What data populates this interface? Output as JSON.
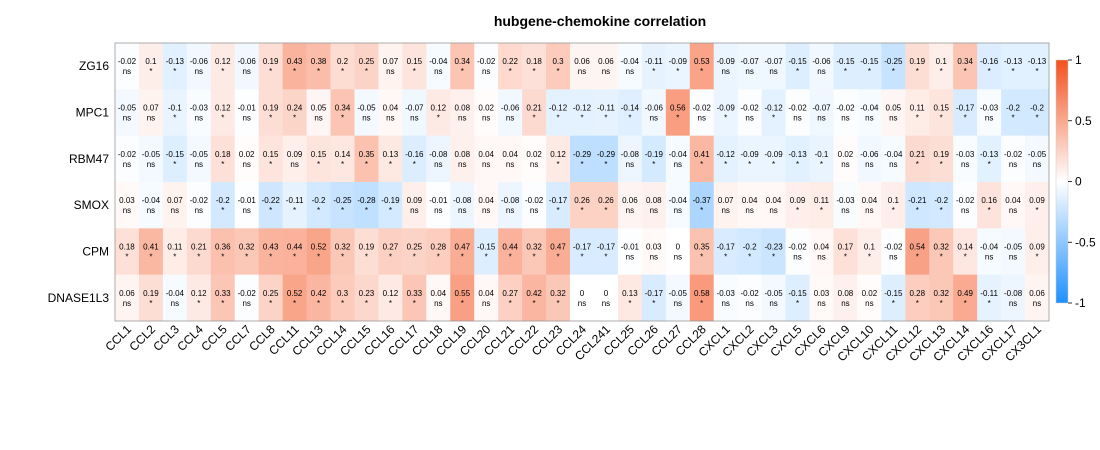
{
  "chart_data": {
    "type": "heatmap",
    "title": "hubgene-chemokine correlation",
    "rows": [
      "ZG16",
      "MPC1",
      "RBM47",
      "SMOX",
      "CPM",
      "DNASE1L3"
    ],
    "columns": [
      "CCL1",
      "CCL2",
      "CCL3",
      "CCL4",
      "CCL5",
      "CCL7",
      "CCL8",
      "CCL11",
      "CCL13",
      "CCL14",
      "CCL15",
      "CCL16",
      "CCL17",
      "CCL18",
      "CCL19",
      "CCL20",
      "CCL21",
      "CCL22",
      "CCL23",
      "CCL24",
      "CCL241",
      "CCL25",
      "CCL26",
      "CCL27",
      "CCL28",
      "CXCL1",
      "CXCL2",
      "CXCL3",
      "CXCL5",
      "CXCL6",
      "CXCL9",
      "CXCL10",
      "CXCL11",
      "CXCL12",
      "CXCL13",
      "CXCL14",
      "CXCL16",
      "CXCL17",
      "CX3CL1"
    ],
    "values": [
      [
        "-0.02",
        "0.1",
        "-0.13",
        "-0.06",
        "0.12",
        "-0.06",
        "0.19",
        "0.43",
        "0.38",
        "0.2",
        "0.25",
        "0.07",
        "0.15",
        "-0.04",
        "0.34",
        "-0.02",
        "0.22",
        "0.18",
        "0.3",
        "0.06",
        "0.06",
        "-0.04",
        "-0.11",
        "-0.09",
        "0.53",
        "-0.09",
        "-0.07",
        "-0.07",
        "-0.15",
        "-0.06",
        "-0.15",
        "-0.15",
        "-0.25",
        "0.19",
        "0.1",
        "0.34",
        "-0.16",
        "-0.13",
        "-0.13"
      ],
      [
        "-0.05",
        "0.07",
        "-0.1",
        "-0.03",
        "0.12",
        "-0.01",
        "0.19",
        "0.24",
        "0.05",
        "0.34",
        "-0.05",
        "0.04",
        "-0.07",
        "0.12",
        "0.08",
        "0.02",
        "-0.06",
        "0.21",
        "-0.12",
        "-0.12",
        "-0.11",
        "-0.14",
        "-0.06",
        "0.56",
        "-0.02",
        "-0.09",
        "-0.02",
        "-0.12",
        "-0.02",
        "-0.07",
        "-0.02",
        "-0.04",
        "0.05",
        "0.11",
        "0.15",
        "-0.17",
        "-0.03",
        "-0.2",
        "-0.2"
      ],
      [
        "-0.02",
        "-0.05",
        "-0.15",
        "-0.05",
        "0.18",
        "0.02",
        "0.15",
        "0.09",
        "0.15",
        "0.14",
        "0.35",
        "0.13",
        "-0.16",
        "-0.08",
        "0.08",
        "0.04",
        "0.04",
        "0.02",
        "0.12",
        "-0.29",
        "-0.29",
        "-0.08",
        "-0.19",
        "-0.04",
        "0.41",
        "-0.12",
        "-0.09",
        "-0.09",
        "-0.13",
        "-0.1",
        "0.02",
        "-0.06",
        "-0.04",
        "0.21",
        "0.19",
        "-0.03",
        "-0.13",
        "-0.02",
        "-0.05"
      ],
      [
        "0.03",
        "-0.04",
        "0.07",
        "-0.02",
        "-0.2",
        "-0.01",
        "-0.22",
        "-0.11",
        "-0.2",
        "-0.25",
        "-0.28",
        "-0.19",
        "0.09",
        "-0.01",
        "-0.08",
        "0.04",
        "-0.08",
        "-0.02",
        "-0.17",
        "0.26",
        "0.26",
        "0.06",
        "0.08",
        "-0.04",
        "-0.37",
        "0.07",
        "0.04",
        "0.04",
        "0.09",
        "0.11",
        "-0.03",
        "0.04",
        "0.1",
        "-0.21",
        "-0.2",
        "-0.02",
        "0.16",
        "0.04",
        "0.09"
      ],
      [
        "0.18",
        "0.41",
        "0.11",
        "0.21",
        "0.36",
        "0.32",
        "0.43",
        "0.44",
        "0.52",
        "0.32",
        "0.19",
        "0.27",
        "0.25",
        "0.28",
        "0.47",
        "-0.15",
        "0.44",
        "0.32",
        "0.47",
        "-0.17",
        "-0.17",
        "-0.01",
        "0.03",
        "0",
        "0.35",
        "-0.17",
        "-0.2",
        "-0.23",
        "-0.02",
        "0.04",
        "0.17",
        "0.1",
        "-0.02",
        "0.54",
        "0.32",
        "0.14",
        "-0.04",
        "-0.05",
        "0.09"
      ],
      [
        "0.06",
        "0.19",
        "-0.04",
        "0.12",
        "0.33",
        "-0.02",
        "0.25",
        "0.52",
        "0.42",
        "0.3",
        "0.23",
        "0.12",
        "0.33",
        "0.04",
        "0.55",
        "0.04",
        "0.27",
        "0.42",
        "0.32",
        "0",
        "0",
        "0.13",
        "-0.17",
        "-0.05",
        "0.58",
        "-0.03",
        "-0.02",
        "-0.05",
        "-0.15",
        "0.03",
        "0.08",
        "0.02",
        "-0.15",
        "0.28",
        "0.32",
        "0.49",
        "-0.11",
        "-0.08",
        "0.06"
      ]
    ],
    "significance": [
      [
        "ns",
        "*",
        "*",
        "ns",
        "*",
        "ns",
        "*",
        "*",
        "*",
        "*",
        "*",
        "ns",
        "*",
        "ns",
        "*",
        "ns",
        "*",
        "*",
        "*",
        "ns",
        "ns",
        "ns",
        "*",
        "*",
        "*",
        "ns",
        "ns",
        "ns",
        "*",
        "ns",
        "*",
        "*",
        "*",
        "*",
        "*",
        "*",
        "*",
        "*",
        "*"
      ],
      [
        "ns",
        "ns",
        "*",
        "ns",
        "*",
        "ns",
        "*",
        "*",
        "ns",
        "*",
        "ns",
        "ns",
        "ns",
        "*",
        "ns",
        "ns",
        "ns",
        "*",
        "*",
        "*",
        "*",
        "*",
        "ns",
        "*",
        "ns",
        "*",
        "ns",
        "*",
        "ns",
        "ns",
        "ns",
        "ns",
        "ns",
        "*",
        "*",
        "*",
        "ns",
        "*",
        "*"
      ],
      [
        "ns",
        "ns",
        "*",
        "ns",
        "*",
        "ns",
        "*",
        "ns",
        "*",
        "*",
        "*",
        "*",
        "*",
        "ns",
        "ns",
        "ns",
        "ns",
        "ns",
        "*",
        "*",
        "*",
        "ns",
        "*",
        "ns",
        "*",
        "*",
        "*",
        "*",
        "*",
        "*",
        "ns",
        "ns",
        "ns",
        "*",
        "*",
        "ns",
        "*",
        "ns",
        "ns"
      ],
      [
        "ns",
        "ns",
        "ns",
        "ns",
        "*",
        "ns",
        "*",
        "*",
        "*",
        "*",
        "*",
        "*",
        "ns",
        "ns",
        "ns",
        "ns",
        "ns",
        "ns",
        "*",
        "*",
        "*",
        "ns",
        "ns",
        "ns",
        "*",
        "ns",
        "ns",
        "ns",
        "*",
        "*",
        "ns",
        "ns",
        "*",
        "*",
        "*",
        "ns",
        "*",
        "ns",
        "*"
      ],
      [
        "*",
        "*",
        "*",
        "*",
        "*",
        "*",
        "*",
        "*",
        "*",
        "*",
        "*",
        "*",
        "*",
        "*",
        "*",
        "*",
        "*",
        "*",
        "*",
        "*",
        "*",
        "ns",
        "ns",
        "ns",
        "*",
        "*",
        "*",
        "*",
        "ns",
        "ns",
        "*",
        "*",
        "ns",
        "*",
        "*",
        "*",
        "ns",
        "ns",
        "*"
      ],
      [
        "ns",
        "*",
        "ns",
        "*",
        "*",
        "ns",
        "*",
        "*",
        "*",
        "*",
        "*",
        "*",
        "*",
        "ns",
        "*",
        "ns",
        "*",
        "*",
        "*",
        "ns",
        "ns",
        "*",
        "*",
        "ns",
        "*",
        "ns",
        "ns",
        "ns",
        "*",
        "ns",
        "ns",
        "ns",
        "*",
        "*",
        "*",
        "*",
        "*",
        "ns",
        "ns"
      ]
    ],
    "color_scale": {
      "min": -1,
      "max": 1,
      "low_color": "#1e90ff",
      "mid_color": "#ffffff",
      "high_color": "#f4511e",
      "ticks": [
        "1",
        "0.5",
        "0",
        "-0.5",
        "-1"
      ]
    },
    "legend_position": "right"
  }
}
